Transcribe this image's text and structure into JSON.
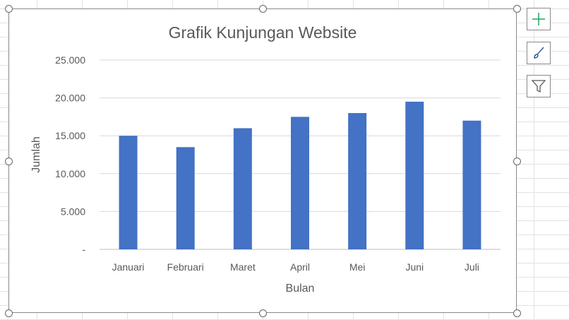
{
  "chart_data": {
    "type": "bar",
    "title": "Grafik Kunjungan Website",
    "xlabel": "Bulan",
    "ylabel": "Jumlah",
    "categories": [
      "Januari",
      "Februari",
      "Maret",
      "April",
      "Mei",
      "Juni",
      "Juli"
    ],
    "values": [
      15000,
      13500,
      16000,
      17500,
      18000,
      19500,
      17000
    ],
    "ylim": [
      0,
      25000
    ],
    "yticks": [
      0,
      5000,
      10000,
      15000,
      20000,
      25000
    ],
    "ytick_labels": [
      "-",
      "5.000",
      "10.000",
      "15.000",
      "20.000",
      "25.000"
    ],
    "grid": true,
    "legend": "none",
    "bar_color": "#4472C4"
  },
  "toolbar": {
    "buttons": [
      {
        "icon": "plus-icon",
        "color": "#21A366"
      },
      {
        "icon": "brush-icon",
        "color": "#2F5597"
      },
      {
        "icon": "filter-icon",
        "color": "#595959"
      }
    ]
  }
}
